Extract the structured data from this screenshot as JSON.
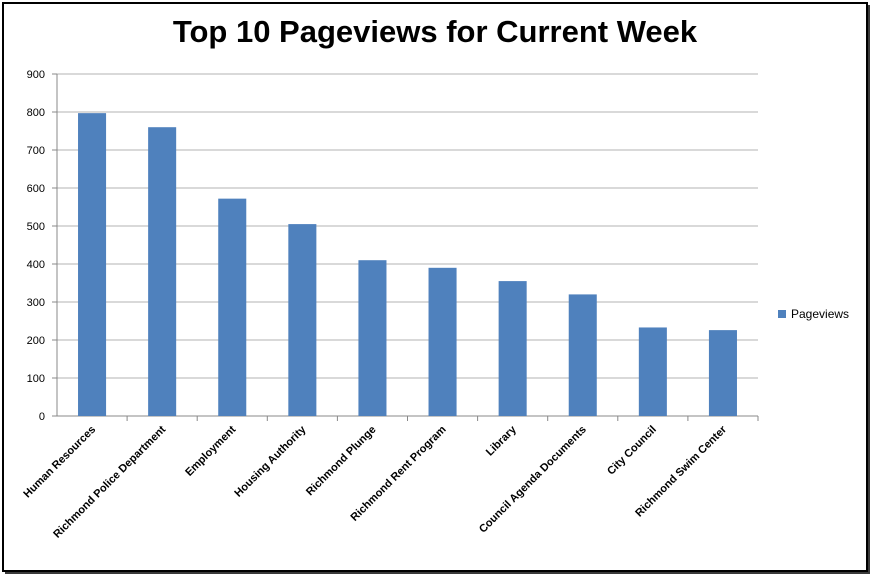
{
  "chart_data": {
    "type": "bar",
    "title": "Top 10 Pageviews for Current Week",
    "categories": [
      "Human Resources",
      "Richmond Police Department",
      "Employment",
      "Housing Authority",
      "Richmond Plunge",
      "Richmond Rent Program",
      "Library",
      "Council Agenda Documents",
      "City Council",
      "Richmond Swim Center"
    ],
    "series": [
      {
        "name": "Pageviews",
        "values": [
          797,
          760,
          572,
          505,
          410,
          390,
          355,
          320,
          233,
          226
        ],
        "color": "#4F81BD"
      }
    ],
    "xlabel": "",
    "ylabel": "",
    "ylim": [
      0,
      900
    ],
    "yticks": [
      0,
      100,
      200,
      300,
      400,
      500,
      600,
      700,
      800,
      900
    ],
    "grid": true,
    "legend_position": "right"
  }
}
